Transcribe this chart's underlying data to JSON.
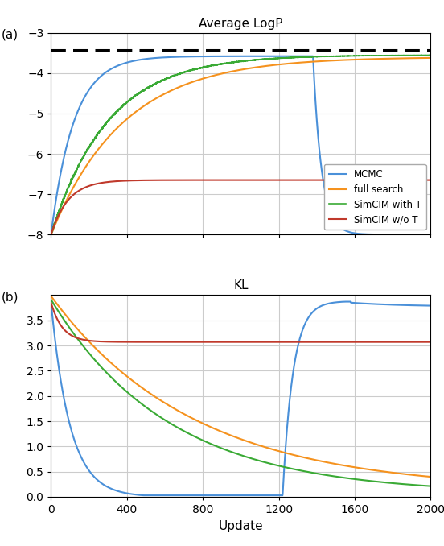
{
  "title_a": "Average LogP",
  "title_b": "KL",
  "xlabel": "Update",
  "label_a": "(a)",
  "label_b": "(b)",
  "colors": {
    "mcmc": "#4a90d9",
    "full_search": "#f5921e",
    "simcim_with_t": "#3aaa35",
    "simcim_wo_t": "#c0392b"
  },
  "legend_labels": [
    "MCMC",
    "full search",
    "SimCIM with T",
    "SimCIM w/o T"
  ],
  "dashed_line_a": -3.42,
  "xlim": [
    0,
    2000
  ],
  "ylim_a": [
    -8,
    -3
  ],
  "ylim_b": [
    0,
    4.0
  ],
  "yticks_a": [
    -8,
    -7,
    -6,
    -5,
    -4,
    -3
  ],
  "yticks_b": [
    0.0,
    0.5,
    1.0,
    1.5,
    2.0,
    2.5,
    3.0,
    3.5
  ],
  "xticks": [
    0,
    400,
    800,
    1200,
    1600,
    2000
  ],
  "noise_amplitude": 0.04
}
